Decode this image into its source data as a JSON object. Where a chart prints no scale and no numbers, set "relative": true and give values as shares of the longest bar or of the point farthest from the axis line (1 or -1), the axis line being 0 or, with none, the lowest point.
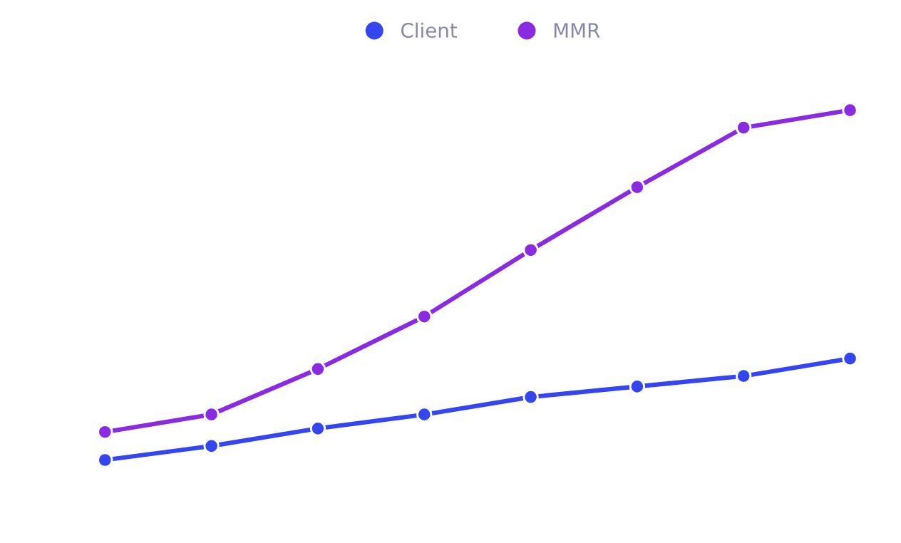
{
  "chart_data": {
    "type": "line",
    "relative": true,
    "legend": "top",
    "marker": "circle",
    "line_style": "solid",
    "categories": [
      null,
      null,
      null,
      null,
      null,
      null,
      null,
      null
    ],
    "series": [
      {
        "name": "Client",
        "color": "#3446f0",
        "values": [
          0,
          0.04,
          0.09,
          0.13,
          0.18,
          0.21,
          0.24,
          0.29
        ]
      },
      {
        "name": "MMR",
        "color": "#8a2be2",
        "values": [
          0.08,
          0.13,
          0.26,
          0.41,
          0.6,
          0.78,
          0.95,
          1
        ]
      }
    ]
  }
}
